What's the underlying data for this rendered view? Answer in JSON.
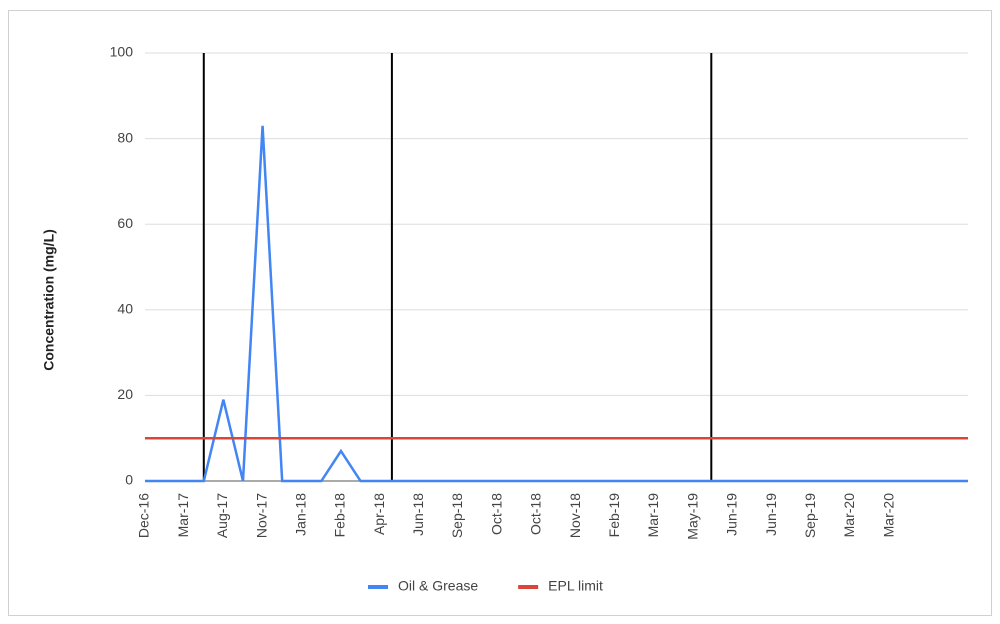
{
  "chart_data": {
    "type": "line",
    "y_label": "Concentration (mg/L)",
    "categories": [
      "Dec-16",
      null,
      "Mar-17",
      null,
      "Aug-17",
      null,
      "Nov-17",
      null,
      "Jan-18",
      null,
      "Feb-18",
      null,
      "Apr-18",
      null,
      "Jun-18",
      null,
      "Sep-18",
      null,
      "Oct-18",
      null,
      "Oct-18",
      null,
      "Nov-18",
      null,
      "Feb-19",
      null,
      "Mar-19",
      null,
      "May-19",
      null,
      "Jun-19",
      null,
      "Jun-19",
      null,
      "Sep-19",
      null,
      "Mar-20",
      null,
      "Mar-20",
      null,
      null,
      null,
      null
    ],
    "series": [
      {
        "name": "Oil & Grease",
        "color": "#4285f4",
        "values": [
          0,
          0,
          0,
          0,
          19,
          0,
          83,
          0,
          0,
          0,
          7,
          0,
          0,
          0,
          0,
          0,
          0,
          0,
          0,
          0,
          0,
          0,
          0,
          0,
          0,
          0,
          0,
          0,
          0,
          0,
          0,
          0,
          0,
          0,
          0,
          0,
          0,
          0,
          0,
          0,
          0,
          0,
          0
        ]
      },
      {
        "name": "EPL limit",
        "color": "#db4437",
        "values": [
          10,
          10,
          10,
          10,
          10,
          10,
          10,
          10,
          10,
          10,
          10,
          10,
          10,
          10,
          10,
          10,
          10,
          10,
          10,
          10,
          10,
          10,
          10,
          10,
          10,
          10,
          10,
          10,
          10,
          10,
          10,
          10,
          10,
          10,
          10,
          10,
          10,
          10,
          10,
          10,
          10,
          10,
          10
        ]
      }
    ],
    "vertical_lines": [
      3,
      12.6,
      28.9
    ],
    "ylim": [
      0,
      100
    ],
    "yticks": [
      0,
      20,
      40,
      60,
      80,
      100
    ],
    "grid": true,
    "legend": "bottom"
  }
}
